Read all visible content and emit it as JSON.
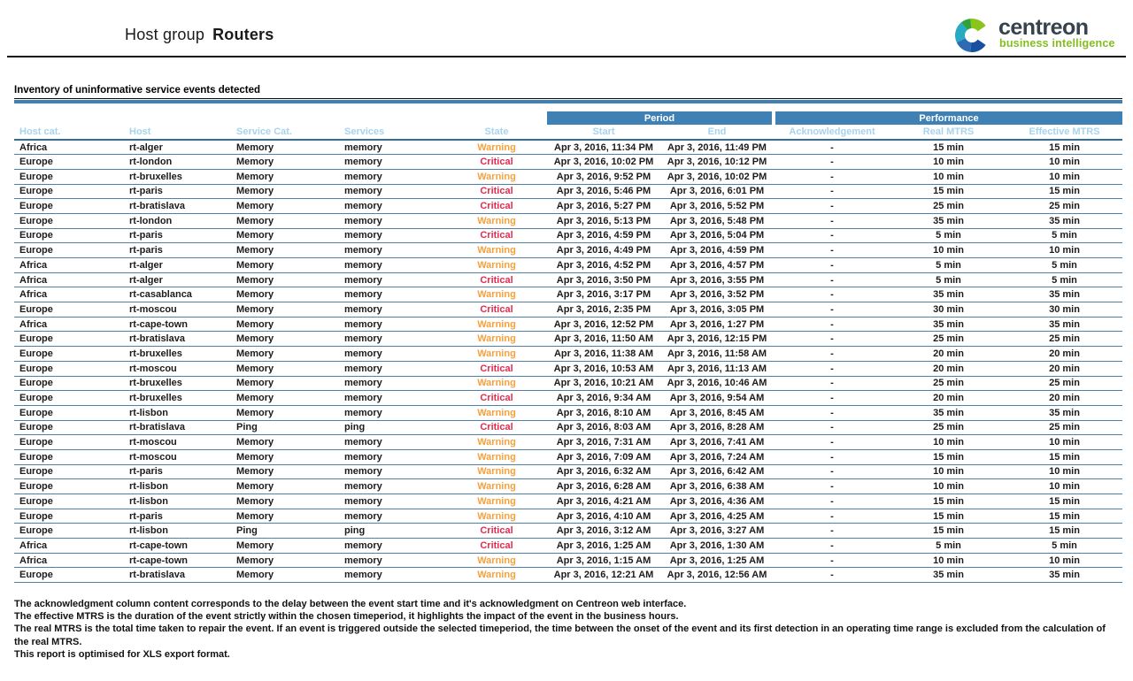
{
  "page": {
    "title_prefix": "Host group",
    "title_name": "Routers"
  },
  "logo": {
    "brand": "centreon",
    "tagline": "business intelligence"
  },
  "section": {
    "title": "Inventory of uninformative service events detected"
  },
  "table": {
    "group_headers": {
      "period": "Period",
      "performance": "Performance"
    },
    "columns": [
      "Host cat.",
      "Host",
      "Service Cat.",
      "Services",
      "State",
      "Start",
      "End",
      "Acknowledgement",
      "Real MTRS",
      "Effective MTRS"
    ],
    "rows": [
      [
        "Africa",
        "rt-alger",
        "Memory",
        "memory",
        "Warning",
        "Apr 3, 2016, 11:34 PM",
        "Apr 3, 2016, 11:49 PM",
        "-",
        "15 min",
        "15 min"
      ],
      [
        "Europe",
        "rt-london",
        "Memory",
        "memory",
        "Critical",
        "Apr 3, 2016, 10:02 PM",
        "Apr 3, 2016, 10:12 PM",
        "-",
        "10 min",
        "10 min"
      ],
      [
        "Europe",
        "rt-bruxelles",
        "Memory",
        "memory",
        "Warning",
        "Apr 3, 2016, 9:52 PM",
        "Apr 3, 2016, 10:02 PM",
        "-",
        "10 min",
        "10 min"
      ],
      [
        "Europe",
        "rt-paris",
        "Memory",
        "memory",
        "Critical",
        "Apr 3, 2016, 5:46 PM",
        "Apr 3, 2016, 6:01 PM",
        "-",
        "15 min",
        "15 min"
      ],
      [
        "Europe",
        "rt-bratislava",
        "Memory",
        "memory",
        "Critical",
        "Apr 3, 2016, 5:27 PM",
        "Apr 3, 2016, 5:52 PM",
        "-",
        "25 min",
        "25 min"
      ],
      [
        "Europe",
        "rt-london",
        "Memory",
        "memory",
        "Warning",
        "Apr 3, 2016, 5:13 PM",
        "Apr 3, 2016, 5:48 PM",
        "-",
        "35 min",
        "35 min"
      ],
      [
        "Europe",
        "rt-paris",
        "Memory",
        "memory",
        "Critical",
        "Apr 3, 2016, 4:59 PM",
        "Apr 3, 2016, 5:04 PM",
        "-",
        "5 min",
        "5 min"
      ],
      [
        "Europe",
        "rt-paris",
        "Memory",
        "memory",
        "Warning",
        "Apr 3, 2016, 4:49 PM",
        "Apr 3, 2016, 4:59 PM",
        "-",
        "10 min",
        "10 min"
      ],
      [
        "Africa",
        "rt-alger",
        "Memory",
        "memory",
        "Warning",
        "Apr 3, 2016, 4:52 PM",
        "Apr 3, 2016, 4:57 PM",
        "-",
        "5 min",
        "5 min"
      ],
      [
        "Africa",
        "rt-alger",
        "Memory",
        "memory",
        "Critical",
        "Apr 3, 2016, 3:50 PM",
        "Apr 3, 2016, 3:55 PM",
        "-",
        "5 min",
        "5 min"
      ],
      [
        "Africa",
        "rt-casablanca",
        "Memory",
        "memory",
        "Warning",
        "Apr 3, 2016, 3:17 PM",
        "Apr 3, 2016, 3:52 PM",
        "-",
        "35 min",
        "35 min"
      ],
      [
        "Europe",
        "rt-moscou",
        "Memory",
        "memory",
        "Critical",
        "Apr 3, 2016, 2:35 PM",
        "Apr 3, 2016, 3:05 PM",
        "-",
        "30 min",
        "30 min"
      ],
      [
        "Africa",
        "rt-cape-town",
        "Memory",
        "memory",
        "Warning",
        "Apr 3, 2016, 12:52 PM",
        "Apr 3, 2016, 1:27 PM",
        "-",
        "35 min",
        "35 min"
      ],
      [
        "Europe",
        "rt-bratislava",
        "Memory",
        "memory",
        "Warning",
        "Apr 3, 2016, 11:50 AM",
        "Apr 3, 2016, 12:15 PM",
        "-",
        "25 min",
        "25 min"
      ],
      [
        "Europe",
        "rt-bruxelles",
        "Memory",
        "memory",
        "Warning",
        "Apr 3, 2016, 11:38 AM",
        "Apr 3, 2016, 11:58 AM",
        "-",
        "20 min",
        "20 min"
      ],
      [
        "Europe",
        "rt-moscou",
        "Memory",
        "memory",
        "Critical",
        "Apr 3, 2016, 10:53 AM",
        "Apr 3, 2016, 11:13 AM",
        "-",
        "20 min",
        "20 min"
      ],
      [
        "Europe",
        "rt-bruxelles",
        "Memory",
        "memory",
        "Warning",
        "Apr 3, 2016, 10:21 AM",
        "Apr 3, 2016, 10:46 AM",
        "-",
        "25 min",
        "25 min"
      ],
      [
        "Europe",
        "rt-bruxelles",
        "Memory",
        "memory",
        "Critical",
        "Apr 3, 2016, 9:34 AM",
        "Apr 3, 2016, 9:54 AM",
        "-",
        "20 min",
        "20 min"
      ],
      [
        "Europe",
        "rt-lisbon",
        "Memory",
        "memory",
        "Warning",
        "Apr 3, 2016, 8:10 AM",
        "Apr 3, 2016, 8:45 AM",
        "-",
        "35 min",
        "35 min"
      ],
      [
        "Europe",
        "rt-bratislava",
        "Ping",
        "ping",
        "Critical",
        "Apr 3, 2016, 8:03 AM",
        "Apr 3, 2016, 8:28 AM",
        "-",
        "25 min",
        "25 min"
      ],
      [
        "Europe",
        "rt-moscou",
        "Memory",
        "memory",
        "Warning",
        "Apr 3, 2016, 7:31 AM",
        "Apr 3, 2016, 7:41 AM",
        "-",
        "10 min",
        "10 min"
      ],
      [
        "Europe",
        "rt-moscou",
        "Memory",
        "memory",
        "Warning",
        "Apr 3, 2016, 7:09 AM",
        "Apr 3, 2016, 7:24 AM",
        "-",
        "15 min",
        "15 min"
      ],
      [
        "Europe",
        "rt-paris",
        "Memory",
        "memory",
        "Warning",
        "Apr 3, 2016, 6:32 AM",
        "Apr 3, 2016, 6:42 AM",
        "-",
        "10 min",
        "10 min"
      ],
      [
        "Europe",
        "rt-lisbon",
        "Memory",
        "memory",
        "Warning",
        "Apr 3, 2016, 6:28 AM",
        "Apr 3, 2016, 6:38 AM",
        "-",
        "10 min",
        "10 min"
      ],
      [
        "Europe",
        "rt-lisbon",
        "Memory",
        "memory",
        "Warning",
        "Apr 3, 2016, 4:21 AM",
        "Apr 3, 2016, 4:36 AM",
        "-",
        "15 min",
        "15 min"
      ],
      [
        "Europe",
        "rt-paris",
        "Memory",
        "memory",
        "Warning",
        "Apr 3, 2016, 4:10 AM",
        "Apr 3, 2016, 4:25 AM",
        "-",
        "15 min",
        "15 min"
      ],
      [
        "Europe",
        "rt-lisbon",
        "Ping",
        "ping",
        "Critical",
        "Apr 3, 2016, 3:12 AM",
        "Apr 3, 2016, 3:27 AM",
        "-",
        "15 min",
        "15 min"
      ],
      [
        "Africa",
        "rt-cape-town",
        "Memory",
        "memory",
        "Critical",
        "Apr 3, 2016, 1:25 AM",
        "Apr 3, 2016, 1:30 AM",
        "-",
        "5 min",
        "5 min"
      ],
      [
        "Africa",
        "rt-cape-town",
        "Memory",
        "memory",
        "Warning",
        "Apr 3, 2016, 1:15 AM",
        "Apr 3, 2016, 1:25 AM",
        "-",
        "10 min",
        "10 min"
      ],
      [
        "Europe",
        "rt-bratislava",
        "Memory",
        "memory",
        "Warning",
        "Apr 3, 2016, 12:21 AM",
        "Apr 3, 2016, 12:56 AM",
        "-",
        "35 min",
        "35 min"
      ]
    ]
  },
  "footnotes": [
    "The acknowledgment column content corresponds to the delay between the event start time and it's acknowledgment on Centreon web interface.",
    "The effective MTRS is the duration of the event strictly within the chosen timeperiod, it highlights the impact of the event in the business hours.",
    "The real MTRS is the total time taken to repair the event. If an event is triggered outside the selected timeperiod, the time between the onset of the event and its first detection in an operating time range is excluded from the calculation of the real MTRS.",
    "This report is optimised for XLS export format."
  ],
  "colors": {
    "header_band": "#3F81B4",
    "column_header_text": "#A8D3EC",
    "warning": "#F5A13C",
    "critical": "#E62A50",
    "row_divider": "#4D80AB",
    "logo_brand": "#36424C",
    "logo_green": "#84BD1F"
  }
}
